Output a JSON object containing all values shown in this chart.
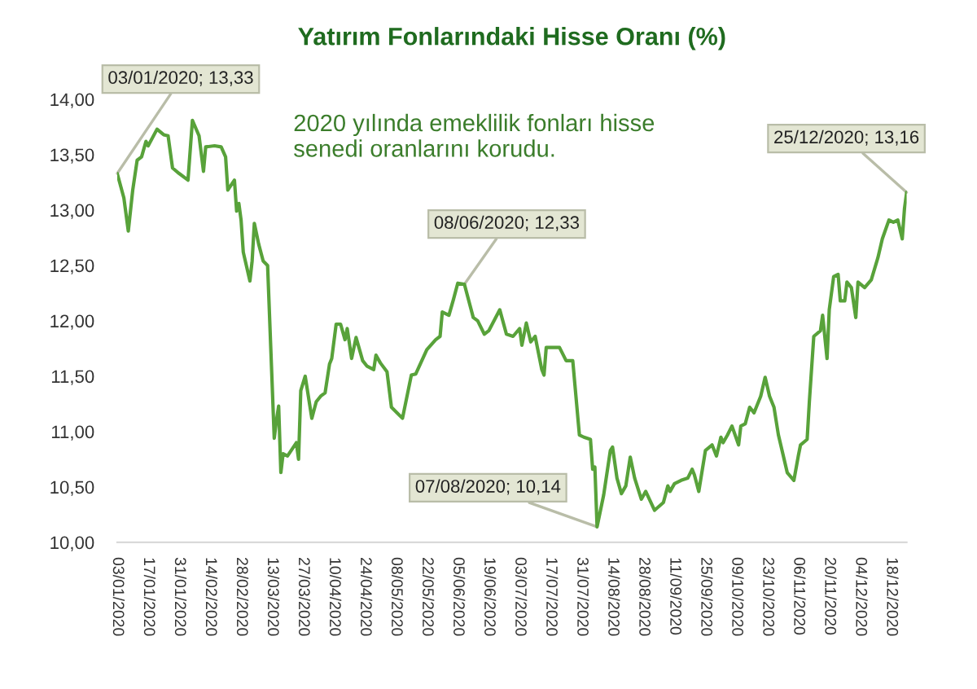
{
  "chart_data": {
    "type": "line",
    "title": "Yatırım Fonlarındaki Hisse Oranı (%)",
    "x": [
      "2020-01-03",
      "2020-01-06",
      "2020-01-08",
      "2020-01-10",
      "2020-01-12",
      "2020-01-14",
      "2020-01-16",
      "2020-01-17",
      "2020-01-21",
      "2020-01-24",
      "2020-01-26",
      "2020-01-28",
      "2020-01-31",
      "2020-02-04",
      "2020-02-06",
      "2020-02-09",
      "2020-02-11",
      "2020-02-12",
      "2020-02-16",
      "2020-02-19",
      "2020-02-21",
      "2020-02-22",
      "2020-02-25",
      "2020-02-26",
      "2020-02-27",
      "2020-02-28",
      "2020-02-29",
      "2020-03-03",
      "2020-03-04",
      "2020-03-05",
      "2020-03-07",
      "2020-03-09",
      "2020-03-11",
      "2020-03-14",
      "2020-03-15",
      "2020-03-16",
      "2020-03-17",
      "2020-03-18",
      "2020-03-20",
      "2020-03-24",
      "2020-03-25",
      "2020-03-26",
      "2020-03-28",
      "2020-03-31",
      "2020-04-02",
      "2020-04-04",
      "2020-04-06",
      "2020-04-08",
      "2020-04-09",
      "2020-04-11",
      "2020-04-13",
      "2020-04-15",
      "2020-04-16",
      "2020-04-18",
      "2020-04-20",
      "2020-04-23",
      "2020-04-25",
      "2020-04-28",
      "2020-04-29",
      "2020-05-01",
      "2020-05-04",
      "2020-05-06",
      "2020-05-11",
      "2020-05-15",
      "2020-05-17",
      "2020-05-22",
      "2020-05-26",
      "2020-05-28",
      "2020-05-29",
      "2020-06-01",
      "2020-06-03",
      "2020-06-05",
      "2020-06-08",
      "2020-06-12",
      "2020-06-14",
      "2020-06-17",
      "2020-06-19",
      "2020-06-24",
      "2020-06-27",
      "2020-06-30",
      "2020-07-03",
      "2020-07-04",
      "2020-07-06",
      "2020-07-08",
      "2020-07-10",
      "2020-07-13",
      "2020-07-14",
      "2020-07-15",
      "2020-07-21",
      "2020-07-24",
      "2020-07-27",
      "2020-07-30",
      "2020-08-01",
      "2020-08-04",
      "2020-08-05",
      "2020-08-06",
      "2020-08-07",
      "2020-08-10",
      "2020-08-13",
      "2020-08-14",
      "2020-08-16",
      "2020-08-18",
      "2020-08-20",
      "2020-08-22",
      "2020-08-24",
      "2020-08-27",
      "2020-08-29",
      "2020-09-02",
      "2020-09-06",
      "2020-09-08",
      "2020-09-09",
      "2020-09-11",
      "2020-09-14",
      "2020-09-17",
      "2020-09-19",
      "2020-09-20",
      "2020-09-22",
      "2020-09-25",
      "2020-09-28",
      "2020-09-30",
      "2020-10-02",
      "2020-10-03",
      "2020-10-05",
      "2020-10-07",
      "2020-10-10",
      "2020-10-11",
      "2020-10-13",
      "2020-10-15",
      "2020-10-17",
      "2020-10-20",
      "2020-10-22",
      "2020-10-24",
      "2020-10-26",
      "2020-10-28",
      "2020-11-01",
      "2020-11-04",
      "2020-11-06",
      "2020-11-07",
      "2020-11-10",
      "2020-11-11",
      "2020-11-13",
      "2020-11-16",
      "2020-11-17",
      "2020-11-19",
      "2020-11-20",
      "2020-11-22",
      "2020-11-24",
      "2020-11-25",
      "2020-11-27",
      "2020-11-28",
      "2020-11-30",
      "2020-12-02",
      "2020-12-03",
      "2020-12-06",
      "2020-12-09",
      "2020-12-12",
      "2020-12-14",
      "2020-12-17",
      "2020-12-19",
      "2020-12-21",
      "2020-12-23",
      "2020-12-24",
      "2020-12-25"
    ],
    "series": [
      {
        "color": "#58a23a",
        "values": [
          13.33,
          13.11,
          12.81,
          13.18,
          13.45,
          13.48,
          13.62,
          13.58,
          13.73,
          13.68,
          13.67,
          13.38,
          13.33,
          13.27,
          13.81,
          13.67,
          13.35,
          13.57,
          13.58,
          13.57,
          13.48,
          13.18,
          13.27,
          12.99,
          13.06,
          12.91,
          12.62,
          12.36,
          12.54,
          12.88,
          12.69,
          12.54,
          12.5,
          10.94,
          11.1,
          11.23,
          10.63,
          10.8,
          10.78,
          10.9,
          10.75,
          11.37,
          11.5,
          11.12,
          11.27,
          11.32,
          11.35,
          11.61,
          11.66,
          11.97,
          11.97,
          11.83,
          11.93,
          11.66,
          11.85,
          11.64,
          11.59,
          11.56,
          11.69,
          11.62,
          11.54,
          11.22,
          11.12,
          11.51,
          11.52,
          11.74,
          11.83,
          11.86,
          12.08,
          12.05,
          12.19,
          12.34,
          12.33,
          12.03,
          12.0,
          11.88,
          11.91,
          12.1,
          11.88,
          11.86,
          11.93,
          11.78,
          11.98,
          11.81,
          11.86,
          11.56,
          11.51,
          11.76,
          11.76,
          11.64,
          11.64,
          10.97,
          10.95,
          10.93,
          10.66,
          10.68,
          10.14,
          10.43,
          10.83,
          10.86,
          10.58,
          10.44,
          10.51,
          10.77,
          10.58,
          10.39,
          10.46,
          10.29,
          10.36,
          10.51,
          10.46,
          10.53,
          10.56,
          10.58,
          10.66,
          10.61,
          10.46,
          10.83,
          10.88,
          10.78,
          10.95,
          10.9,
          10.97,
          11.05,
          10.88,
          11.05,
          11.07,
          11.22,
          11.17,
          11.32,
          11.49,
          11.32,
          11.22,
          10.97,
          10.63,
          10.56,
          10.78,
          10.88,
          10.93,
          11.27,
          11.86,
          11.91,
          12.05,
          11.66,
          12.1,
          12.4,
          12.42,
          12.18,
          12.18,
          12.35,
          12.3,
          12.03,
          12.35,
          12.3,
          12.37,
          12.57,
          12.74,
          12.91,
          12.89,
          12.91,
          12.74,
          13.01,
          13.16
        ]
      }
    ],
    "xlim": [
      "2020-01-03",
      "2020-12-25"
    ],
    "xticks": [
      {
        "value": "2020-01-03",
        "label": "03/01/2020"
      },
      {
        "value": "2020-01-17",
        "label": "17/01/2020"
      },
      {
        "value": "2020-01-31",
        "label": "31/01/2020"
      },
      {
        "value": "2020-02-14",
        "label": "14/02/2020"
      },
      {
        "value": "2020-02-28",
        "label": "28/02/2020"
      },
      {
        "value": "2020-03-13",
        "label": "13/03/2020"
      },
      {
        "value": "2020-03-27",
        "label": "27/03/2020"
      },
      {
        "value": "2020-04-10",
        "label": "10/04/2020"
      },
      {
        "value": "2020-04-24",
        "label": "24/04/2020"
      },
      {
        "value": "2020-05-08",
        "label": "08/05/2020"
      },
      {
        "value": "2020-05-22",
        "label": "22/05/2020"
      },
      {
        "value": "2020-06-05",
        "label": "05/06/2020"
      },
      {
        "value": "2020-06-19",
        "label": "19/06/2020"
      },
      {
        "value": "2020-07-03",
        "label": "03/07/2020"
      },
      {
        "value": "2020-07-17",
        "label": "17/07/2020"
      },
      {
        "value": "2020-07-31",
        "label": "31/07/2020"
      },
      {
        "value": "2020-08-14",
        "label": "14/08/2020"
      },
      {
        "value": "2020-08-28",
        "label": "28/08/2020"
      },
      {
        "value": "2020-09-11",
        "label": "11/09/2020"
      },
      {
        "value": "2020-09-25",
        "label": "25/09/2020"
      },
      {
        "value": "2020-10-09",
        "label": "09/10/2020"
      },
      {
        "value": "2020-10-23",
        "label": "23/10/2020"
      },
      {
        "value": "2020-11-06",
        "label": "06/11/2020"
      },
      {
        "value": "2020-11-20",
        "label": "20/11/2020"
      },
      {
        "value": "2020-12-04",
        "label": "04/12/2020"
      },
      {
        "value": "2020-12-18",
        "label": "18/12/2020"
      }
    ],
    "ylim": [
      10,
      14
    ],
    "yticks": [
      {
        "value": 10,
        "label": "10,00"
      },
      {
        "value": 10.5,
        "label": "10,50"
      },
      {
        "value": 11,
        "label": "11,00"
      },
      {
        "value": 11.5,
        "label": "11,50"
      },
      {
        "value": 12,
        "label": "12,00"
      },
      {
        "value": 12.5,
        "label": "12,50"
      },
      {
        "value": 13,
        "label": "13,00"
      },
      {
        "value": 13.5,
        "label": "13,50"
      },
      {
        "value": 14,
        "label": "14,00"
      }
    ],
    "annotations": [
      "2020 yılında emeklilik fonları hisse\nsenedi oranlarını korudu.",
      {
        "text": "03/01/2020; 13,33",
        "x": "2020-01-03",
        "y": 13.33
      },
      {
        "text": "08/06/2020; 12,33",
        "x": "2020-06-08",
        "y": 12.33
      },
      {
        "text": "07/08/2020; 10,14",
        "x": "2020-08-07",
        "y": 10.14
      },
      {
        "text": "25/12/2020; 13,16",
        "x": "2020-12-25",
        "y": 13.16
      }
    ]
  }
}
